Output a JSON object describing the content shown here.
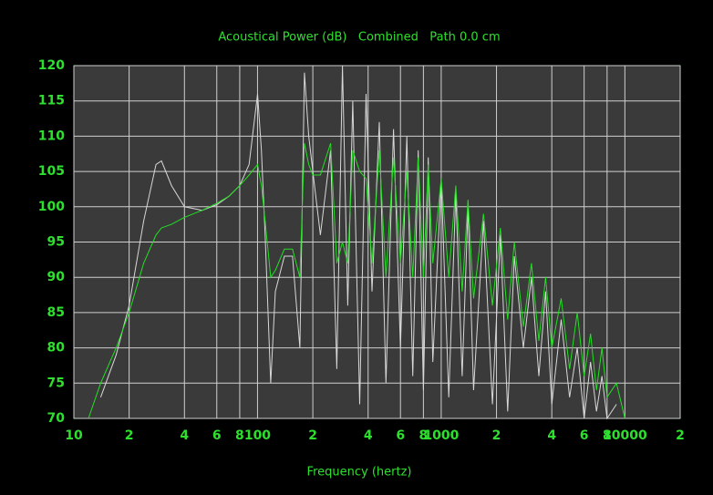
{
  "chart_data": {
    "type": "line",
    "title": "Acoustical Power (dB)   Combined   Path 0.0 cm",
    "x_label": "Frequency (hertz)",
    "log_x": true,
    "grid": true,
    "xlim": [
      10,
      20000
    ],
    "ylim": [
      70,
      120
    ],
    "xticks": [
      10,
      {
        "value": 20,
        "label": "2"
      },
      {
        "value": 40,
        "label": "4"
      },
      {
        "value": 60,
        "label": "6"
      },
      {
        "value": 80,
        "label": "8"
      },
      100,
      {
        "value": 200,
        "label": "2"
      },
      {
        "value": 400,
        "label": "4"
      },
      {
        "value": 600,
        "label": "6"
      },
      {
        "value": 800,
        "label": "8"
      },
      1000,
      {
        "value": 2000,
        "label": "2"
      },
      {
        "value": 4000,
        "label": "4"
      },
      {
        "value": 6000,
        "label": "6"
      },
      {
        "value": 8000,
        "label": "8"
      },
      10000,
      {
        "value": 20000,
        "label": "2"
      }
    ],
    "yticks": [
      70,
      75,
      80,
      85,
      90,
      95,
      100,
      105,
      110,
      115,
      120
    ],
    "x": [
      12,
      14,
      17,
      20,
      24,
      28,
      30,
      34,
      40,
      50,
      60,
      70,
      80,
      90,
      100,
      105,
      110,
      118,
      125,
      140,
      155,
      170,
      180,
      190,
      200,
      220,
      250,
      270,
      290,
      310,
      330,
      360,
      390,
      420,
      460,
      500,
      550,
      600,
      650,
      700,
      750,
      800,
      850,
      900,
      1000,
      1100,
      1200,
      1300,
      1400,
      1500,
      1700,
      1900,
      2100,
      2300,
      2500,
      2800,
      3100,
      3400,
      3700,
      4000,
      4500,
      5000,
      5500,
      6000,
      6500,
      7000,
      7500,
      8000,
      9000,
      10000
    ],
    "series": [
      {
        "color": "#d8d8d8",
        "values": [
          null,
          73,
          79,
          86,
          98,
          106,
          106.5,
          103,
          100,
          99.5,
          100.3,
          101.5,
          103,
          106,
          116,
          108,
          96,
          75,
          88,
          93,
          93,
          80,
          119,
          110,
          105,
          96,
          108,
          77,
          120,
          86,
          115,
          72,
          116,
          88,
          112,
          75,
          111,
          80,
          110,
          76,
          108,
          74,
          107,
          78,
          104,
          73,
          102,
          76,
          100,
          74,
          98,
          72,
          96,
          71,
          93,
          80,
          90,
          76,
          88,
          72,
          84,
          73,
          80,
          70,
          78,
          71,
          76,
          70,
          72,
          null
        ]
      },
      {
        "color": "#22e022",
        "values": [
          70,
          75,
          80,
          85,
          92,
          96,
          97,
          97.5,
          98.5,
          99.5,
          100.5,
          101.5,
          103,
          104.5,
          106,
          103,
          98,
          90,
          91,
          94,
          94,
          90,
          109,
          106,
          104.5,
          104.5,
          109,
          92,
          95,
          92,
          108,
          105,
          104,
          92,
          108,
          90,
          107,
          92,
          105,
          90,
          107,
          90,
          106,
          92,
          104,
          90,
          103,
          88,
          101,
          87,
          99,
          86,
          97,
          84,
          95,
          83,
          92,
          81,
          90,
          80,
          87,
          77,
          85,
          76,
          82,
          74,
          80,
          73,
          75,
          70
        ]
      }
    ]
  }
}
